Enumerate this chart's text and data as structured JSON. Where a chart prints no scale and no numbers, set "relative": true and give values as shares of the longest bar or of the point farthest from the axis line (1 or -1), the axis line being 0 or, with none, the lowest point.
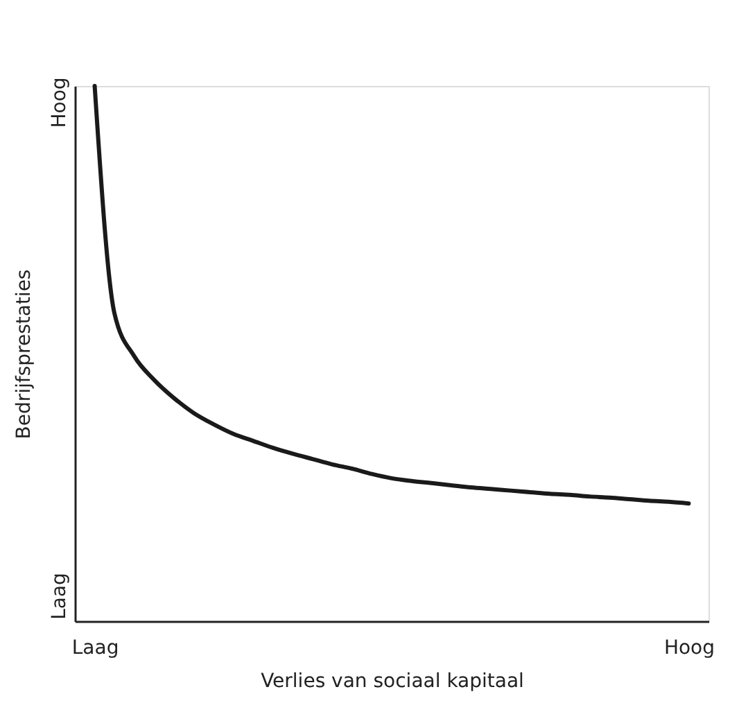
{
  "chart_data": {
    "type": "line",
    "relative": true,
    "xlabel": "Verlies van sociaal kapitaal",
    "ylabel": "Bedrijfsprestaties",
    "annotations": [
      "Laag",
      "Hoog"
    ],
    "categories": [
      "Laag",
      null,
      null,
      null,
      null,
      null,
      null,
      null,
      null,
      null,
      null,
      null,
      null,
      null,
      null,
      null,
      null,
      null,
      null,
      null,
      null,
      null,
      null,
      null,
      null,
      null,
      null,
      null,
      null,
      null,
      "Hoog"
    ],
    "series": [
      {
        "color": "#1a1a1a",
        "values": [
          1.0,
          0.575,
          0.495,
          0.451,
          0.417,
          0.389,
          0.368,
          0.35,
          0.337,
          0.324,
          0.313,
          0.303,
          0.293,
          0.285,
          0.275,
          0.267,
          0.262,
          0.258,
          0.254,
          0.25,
          0.247,
          0.244,
          0.241,
          0.238,
          0.236,
          0.233,
          0.231,
          0.228,
          0.225,
          0.223,
          0.22
        ]
      }
    ],
    "grid": false,
    "marker": "none",
    "line_style": "solid"
  }
}
